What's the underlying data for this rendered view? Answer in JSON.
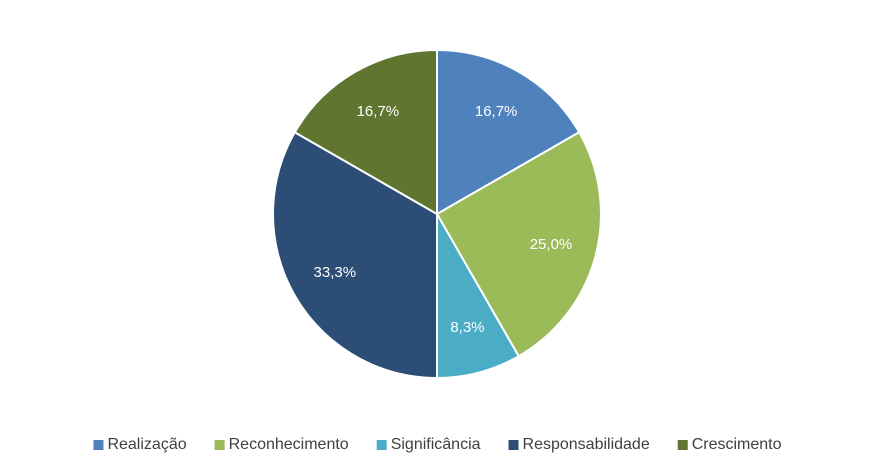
{
  "chart_data": {
    "type": "pie",
    "categories": [
      "Realização",
      "Reconhecimento",
      "Significância",
      "Responsabilidade",
      "Crescimento"
    ],
    "values": [
      16.7,
      25.0,
      8.3,
      33.3,
      16.7
    ],
    "value_labels": [
      "16,7%",
      "25,0%",
      "8,3%",
      "33,3%",
      "16,7%"
    ],
    "colors": [
      "#4f81bd",
      "#9bbb59",
      "#4bacc6",
      "#2c4d75",
      "#5f7530"
    ],
    "legend": "bottom"
  }
}
